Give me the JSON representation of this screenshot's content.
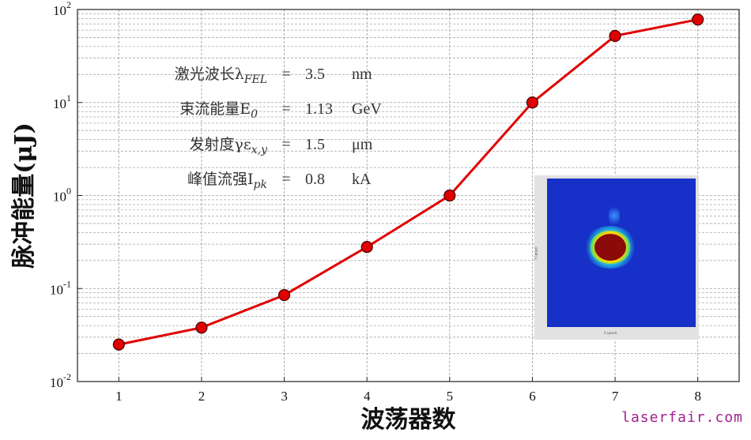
{
  "chart_data": {
    "type": "line",
    "xlabel": "波荡器数",
    "ylabel": "脉冲能量(μJ)",
    "yscale": "log",
    "xlim": [
      0.5,
      8.5
    ],
    "ylim": [
      0.01,
      100
    ],
    "grid": true,
    "x": [
      1,
      2,
      3,
      4,
      5,
      6,
      7,
      8
    ],
    "series": [
      {
        "values": [
          0.025,
          0.038,
          0.085,
          0.28,
          1.0,
          10.0,
          52,
          78
        ]
      }
    ],
    "x_ticks": [
      "1",
      "2",
      "3",
      "4",
      "5",
      "6",
      "7",
      "8"
    ],
    "y_ticks": [
      {
        "base": "10",
        "exp": "-2",
        "value": 0.01
      },
      {
        "base": "10",
        "exp": "-1",
        "value": 0.1
      },
      {
        "base": "10",
        "exp": "0",
        "value": 1
      },
      {
        "base": "10",
        "exp": "1",
        "value": 10
      },
      {
        "base": "10",
        "exp": "2",
        "value": 100
      }
    ],
    "line_color": "#e00000",
    "marker_color": "#e00000",
    "annotations": [
      {
        "label": "激光波长λ",
        "sub": "FEL",
        "eq": "=",
        "value": "3.5",
        "unit": "nm"
      },
      {
        "label": "束流能量E",
        "sub": "0",
        "eq": "=",
        "value": "1.13",
        "unit": "GeV"
      },
      {
        "label": "发射度γε",
        "sub": "x,y",
        "eq": "=",
        "value": "1.5",
        "unit": "μm"
      },
      {
        "label": "峰值流强I",
        "sub": "pk",
        "eq": "=",
        "value": "0.8",
        "unit": "kA"
      }
    ]
  },
  "inset": {
    "description_icon": "beam-profile-image",
    "xlabel": "X (pixel)",
    "ylabel": "Y (pixel)",
    "colors": {
      "background": "#1630c8",
      "core": "#8b0a0a",
      "ring": "#ffd400"
    }
  },
  "watermark": "laserfair.com"
}
